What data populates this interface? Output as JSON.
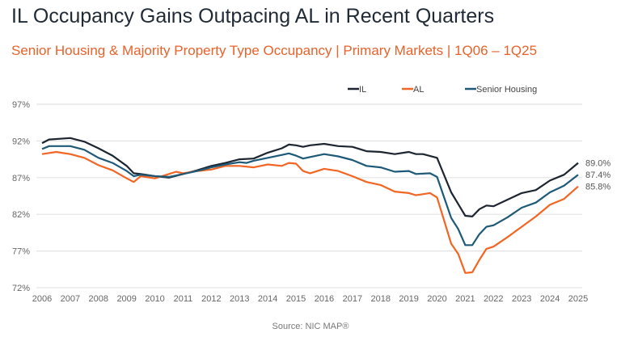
{
  "title": "IL Occupancy Gains Outpacing AL in Recent Quarters",
  "subtitle": "Senior Housing & Majority Property Type Occupancy | Primary Markets | 1Q06 – 1Q25",
  "source": "Source: NIC MAP®",
  "chart_data": {
    "type": "line",
    "title": "IL Occupancy Gains Outpacing AL in Recent Quarters",
    "xlabel": "",
    "ylabel": "",
    "xlim": [
      2006,
      2025
    ],
    "ylim": [
      72,
      97
    ],
    "x_ticks": [
      "2006",
      "2007",
      "2008",
      "2009",
      "2010",
      "2011",
      "2012",
      "2013",
      "2014",
      "2015",
      "2016",
      "2017",
      "2018",
      "2019",
      "2020",
      "2021",
      "2022",
      "2023",
      "2024",
      "2025"
    ],
    "y_ticks": [
      "97%",
      "92%",
      "87%",
      "82%",
      "77%",
      "72%"
    ],
    "y_tick_values": [
      97,
      92,
      87,
      82,
      77,
      72
    ],
    "grid": "horizontal",
    "legend": "top",
    "series": [
      {
        "name": "IL",
        "color": "#1c2530",
        "end_label": "89.0%",
        "x": [
          2006,
          2006.25,
          2007,
          2007.5,
          2008,
          2008.5,
          2009,
          2009.25,
          2009.5,
          2010,
          2010.5,
          2011,
          2011.5,
          2012,
          2012.5,
          2013,
          2013.5,
          2014,
          2014.5,
          2014.75,
          2015,
          2015.25,
          2015.5,
          2016,
          2016.5,
          2017,
          2017.5,
          2018,
          2018.5,
          2019,
          2019.25,
          2019.5,
          2020,
          2020.5,
          2021,
          2021.25,
          2021.5,
          2021.75,
          2022,
          2022.5,
          2023,
          2023.5,
          2024,
          2024.5,
          2025
        ],
        "y": [
          91.7,
          92.2,
          92.4,
          91.9,
          91.0,
          90.0,
          88.6,
          87.6,
          87.5,
          87.2,
          87.0,
          87.5,
          88.0,
          88.6,
          89.0,
          89.5,
          89.6,
          90.4,
          91.0,
          91.5,
          91.4,
          91.2,
          91.4,
          91.6,
          91.3,
          91.2,
          90.6,
          90.5,
          90.2,
          90.5,
          90.2,
          90.2,
          89.7,
          85.0,
          81.8,
          81.7,
          82.7,
          83.2,
          83.1,
          84.0,
          84.9,
          85.3,
          86.6,
          87.4,
          89.0
        ]
      },
      {
        "name": "AL",
        "color": "#f26522",
        "end_label": "85.8%",
        "x": [
          2006,
          2006.5,
          2007,
          2007.5,
          2008,
          2008.5,
          2009,
          2009.25,
          2009.5,
          2010,
          2010.5,
          2010.75,
          2011,
          2011.5,
          2012,
          2012.5,
          2013,
          2013.5,
          2014,
          2014.5,
          2014.75,
          2015,
          2015.25,
          2015.5,
          2016,
          2016.5,
          2017,
          2017.5,
          2018,
          2018.5,
          2019,
          2019.25,
          2019.75,
          2020,
          2020.5,
          2020.75,
          2021,
          2021.25,
          2021.5,
          2021.75,
          2022,
          2022.5,
          2023,
          2023.5,
          2024,
          2024.5,
          2025
        ],
        "y": [
          90.2,
          90.5,
          90.2,
          89.7,
          88.7,
          88.0,
          86.9,
          86.4,
          87.2,
          86.9,
          87.5,
          87.8,
          87.6,
          87.9,
          88.1,
          88.6,
          88.6,
          88.4,
          88.8,
          88.6,
          89.0,
          88.9,
          87.9,
          87.6,
          88.2,
          87.9,
          87.2,
          86.4,
          86.0,
          85.1,
          84.9,
          84.6,
          84.9,
          84.3,
          78.0,
          76.6,
          74.0,
          74.1,
          75.8,
          77.3,
          77.6,
          78.9,
          80.3,
          81.7,
          83.3,
          84.1,
          85.8
        ]
      },
      {
        "name": "Senior Housing",
        "color": "#1e5a78",
        "end_label": "87.4%",
        "x": [
          2006,
          2006.25,
          2007,
          2007.5,
          2008,
          2008.5,
          2009,
          2009.25,
          2009.5,
          2010,
          2010.5,
          2011,
          2011.5,
          2012,
          2012.5,
          2013,
          2013.25,
          2013.5,
          2014,
          2014.5,
          2014.75,
          2015,
          2015.25,
          2016,
          2016.5,
          2017,
          2017.5,
          2018,
          2018.5,
          2019,
          2019.25,
          2019.75,
          2020,
          2020.5,
          2020.75,
          2021,
          2021.25,
          2021.5,
          2021.75,
          2022,
          2022.5,
          2023,
          2023.5,
          2024,
          2024.5,
          2025
        ],
        "y": [
          90.9,
          91.3,
          91.3,
          90.8,
          89.7,
          89.0,
          87.9,
          87.2,
          87.4,
          87.2,
          87.1,
          87.5,
          87.9,
          88.4,
          88.8,
          89.1,
          89.0,
          89.3,
          89.7,
          90.1,
          90.3,
          90.0,
          89.6,
          90.2,
          89.9,
          89.4,
          88.6,
          88.4,
          87.8,
          87.9,
          87.5,
          87.6,
          87.1,
          81.5,
          80.0,
          77.8,
          77.8,
          79.3,
          80.3,
          80.5,
          81.6,
          82.9,
          83.6,
          85.0,
          85.9,
          87.4
        ]
      }
    ]
  }
}
